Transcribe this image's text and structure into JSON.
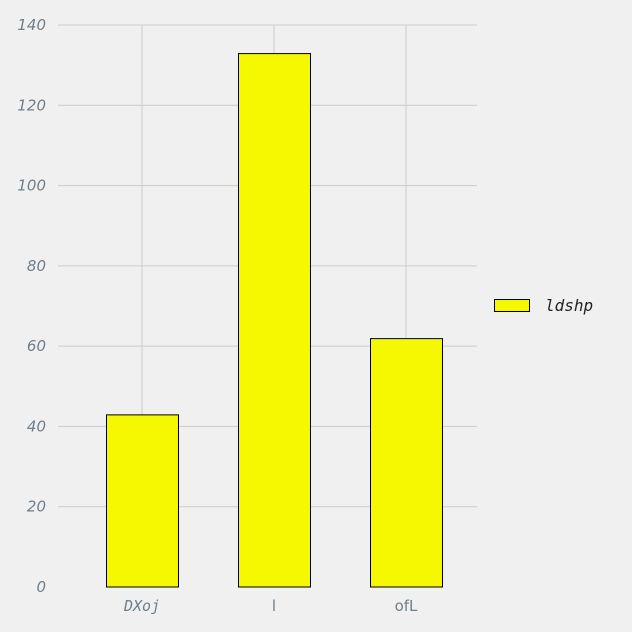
{
  "chart_data": {
    "type": "bar",
    "categories": [
      "DXoj",
      "l",
      "ofL"
    ],
    "series": [
      {
        "name": "ldshp",
        "values": [
          43,
          133,
          62
        ]
      }
    ],
    "title": "",
    "xlabel": "",
    "ylabel": "",
    "ylim": [
      0,
      140
    ],
    "yticks": [
      0,
      20,
      40,
      60,
      80,
      100,
      120,
      140
    ],
    "grid": true,
    "legend_position": "right",
    "colors": {
      "bar_fill": "#f5f800",
      "bar_edge": "#000000",
      "background": "#f0f0f0",
      "grid": "#cccccc",
      "tick_text": "#6f7f8a"
    }
  }
}
